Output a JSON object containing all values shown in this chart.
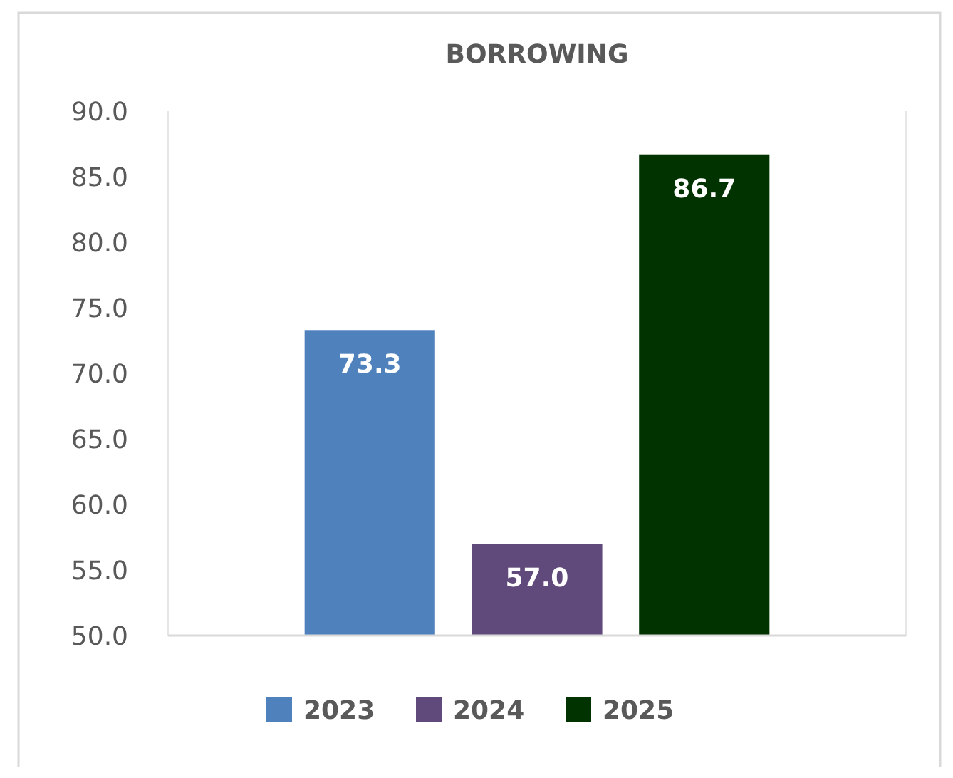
{
  "chart_data": {
    "type": "bar",
    "title": "BORROWING",
    "categories": [
      null
    ],
    "series": [
      {
        "name": "2023",
        "color": "#4f81bd",
        "values": [
          73.3
        ],
        "value_labels": [
          "73.3"
        ]
      },
      {
        "name": "2024",
        "color": "#604a7b",
        "values": [
          57.0
        ],
        "value_labels": [
          "57.0"
        ]
      },
      {
        "name": "2025",
        "color": "#003300",
        "values": [
          86.7
        ],
        "value_labels": [
          "86.7"
        ]
      }
    ],
    "ylim": [
      50,
      90
    ],
    "yticks": [
      {
        "value": 50,
        "label": "50.0"
      },
      {
        "value": 55,
        "label": "55.0"
      },
      {
        "value": 60,
        "label": "60.0"
      },
      {
        "value": 65,
        "label": "65.0"
      },
      {
        "value": 70,
        "label": "70.0"
      },
      {
        "value": 75,
        "label": "75.0"
      },
      {
        "value": 80,
        "label": "80.0"
      },
      {
        "value": 85,
        "label": "85.0"
      },
      {
        "value": 90,
        "label": "90.0"
      }
    ],
    "legend": "bottom"
  }
}
